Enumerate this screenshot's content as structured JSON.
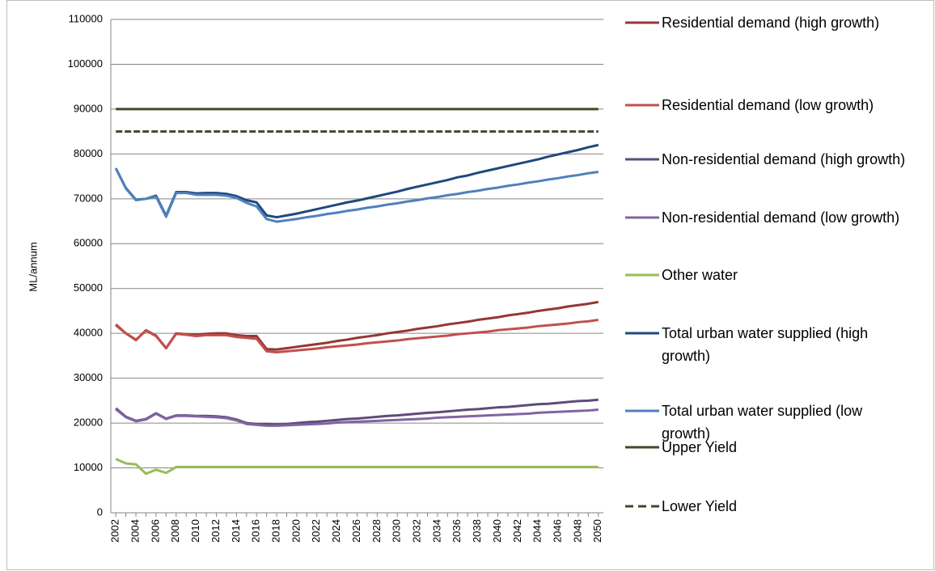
{
  "chart_data": {
    "type": "line",
    "y_label": "ML/annum",
    "categories": [
      2002,
      null,
      2004,
      null,
      2006,
      null,
      2008,
      null,
      2010,
      null,
      2012,
      null,
      2014,
      null,
      2016,
      null,
      2018,
      null,
      2020,
      null,
      2022,
      null,
      2024,
      null,
      2026,
      null,
      2028,
      null,
      2030,
      null,
      2032,
      null,
      2034,
      null,
      2036,
      null,
      2038,
      null,
      2040,
      null,
      2042,
      null,
      2044,
      null,
      2046,
      null,
      2048,
      null,
      2050
    ],
    "ylim": [
      0,
      110000
    ],
    "yticks": [
      0,
      10000,
      20000,
      30000,
      40000,
      50000,
      60000,
      70000,
      80000,
      90000,
      100000,
      110000
    ],
    "grid": true,
    "legend": "right",
    "series": [
      {
        "name": "Residential demand (high growth)",
        "color": "#953735",
        "values": [
          42000,
          40000,
          38500,
          40700,
          39500,
          36700,
          40000,
          39800,
          39700,
          39900,
          40000,
          40000,
          39600,
          39400,
          39400,
          36500,
          36400,
          36700,
          37000,
          37300,
          37600,
          37900,
          38300,
          38600,
          39000,
          39300,
          39600,
          40000,
          40300,
          40600,
          41000,
          41300,
          41600,
          42000,
          42300,
          42600,
          43000,
          43300,
          43600,
          44000,
          44300,
          44600,
          45000,
          45300,
          45600,
          46000,
          46300,
          46600,
          47000
        ]
      },
      {
        "name": "Residential demand (low growth)",
        "color": "#C0504D",
        "values": [
          41800,
          40000,
          38600,
          40600,
          39400,
          36700,
          39900,
          39700,
          39400,
          39600,
          39600,
          39600,
          39200,
          39000,
          38800,
          36000,
          35800,
          36000,
          36200,
          36400,
          36600,
          36900,
          37100,
          37300,
          37500,
          37800,
          38000,
          38200,
          38400,
          38700,
          38900,
          39100,
          39300,
          39500,
          39800,
          40000,
          40200,
          40400,
          40700,
          40900,
          41100,
          41300,
          41600,
          41800,
          42000,
          42200,
          42500,
          42700,
          43000
        ]
      },
      {
        "name": "Non-residential demand (high growth)",
        "color": "#604A7B",
        "values": [
          23300,
          21400,
          20500,
          20900,
          22200,
          21000,
          21700,
          21700,
          21600,
          21600,
          21500,
          21300,
          20800,
          20000,
          19800,
          19800,
          19700,
          19800,
          20000,
          20200,
          20300,
          20500,
          20700,
          20900,
          21000,
          21200,
          21400,
          21600,
          21700,
          21900,
          22100,
          22300,
          22400,
          22600,
          22800,
          23000,
          23100,
          23300,
          23500,
          23600,
          23800,
          24000,
          24200,
          24300,
          24500,
          24700,
          24900,
          25000,
          25200
        ]
      },
      {
        "name": "Non-residential demand (low growth)",
        "color": "#8064A2",
        "values": [
          23100,
          21300,
          20400,
          20800,
          22100,
          20900,
          21600,
          21600,
          21500,
          21400,
          21300,
          21100,
          20600,
          19800,
          19600,
          19400,
          19400,
          19500,
          19600,
          19700,
          19800,
          19900,
          20100,
          20200,
          20300,
          20400,
          20500,
          20600,
          20700,
          20800,
          20900,
          21000,
          21200,
          21300,
          21400,
          21500,
          21600,
          21700,
          21800,
          21900,
          22000,
          22100,
          22300,
          22400,
          22500,
          22600,
          22700,
          22800,
          23000
        ]
      },
      {
        "name": "Other water",
        "color": "#9BBB59",
        "values": [
          12000,
          11000,
          10800,
          8700,
          9600,
          8900,
          10200,
          10200,
          10200,
          10200,
          10200,
          10200,
          10200,
          10200,
          10200,
          10200,
          10200,
          10200,
          10200,
          10200,
          10200,
          10200,
          10200,
          10200,
          10200,
          10200,
          10200,
          10200,
          10200,
          10200,
          10200,
          10200,
          10200,
          10200,
          10200,
          10200,
          10200,
          10200,
          10200,
          10200,
          10200,
          10200,
          10200,
          10200,
          10200,
          10200,
          10200,
          10200,
          10200
        ]
      },
      {
        "name": "Total urban water supplied (high growth)",
        "color": "#1F497D",
        "values": [
          76800,
          72400,
          69800,
          70000,
          70700,
          66200,
          71500,
          71500,
          71200,
          71300,
          71300,
          71100,
          70600,
          69700,
          69200,
          66300,
          65900,
          66300,
          66700,
          67200,
          67700,
          68200,
          68700,
          69200,
          69600,
          70100,
          70600,
          71100,
          71600,
          72200,
          72700,
          73200,
          73700,
          74200,
          74800,
          75200,
          75800,
          76300,
          76800,
          77300,
          77800,
          78300,
          78800,
          79400,
          79900,
          80400,
          80900,
          81500,
          82000
        ]
      },
      {
        "name": "Total urban water supplied (low growth)",
        "color": "#4F81BD",
        "values": [
          76800,
          72300,
          69700,
          70000,
          70500,
          66000,
          71300,
          71300,
          70900,
          70900,
          70900,
          70700,
          70200,
          69100,
          68300,
          65500,
          64900,
          65200,
          65500,
          65900,
          66200,
          66600,
          66900,
          67300,
          67600,
          68000,
          68300,
          68700,
          69000,
          69400,
          69700,
          70100,
          70400,
          70800,
          71100,
          71500,
          71800,
          72200,
          72500,
          72900,
          73200,
          73600,
          73900,
          74300,
          74600,
          75000,
          75300,
          75700,
          76000
        ]
      },
      {
        "name": "Upper Yield",
        "color": "#4A452A",
        "values": [
          90000,
          90000,
          90000,
          90000,
          90000,
          90000,
          90000,
          90000,
          90000,
          90000,
          90000,
          90000,
          90000,
          90000,
          90000,
          90000,
          90000,
          90000,
          90000,
          90000,
          90000,
          90000,
          90000,
          90000,
          90000,
          90000,
          90000,
          90000,
          90000,
          90000,
          90000,
          90000,
          90000,
          90000,
          90000,
          90000,
          90000,
          90000,
          90000,
          90000,
          90000,
          90000,
          90000,
          90000,
          90000,
          90000,
          90000,
          90000,
          90000
        ]
      },
      {
        "name": "Lower Yield",
        "color": "#4A452A",
        "line_style": "dashed",
        "values": [
          85000,
          85000,
          85000,
          85000,
          85000,
          85000,
          85000,
          85000,
          85000,
          85000,
          85000,
          85000,
          85000,
          85000,
          85000,
          85000,
          85000,
          85000,
          85000,
          85000,
          85000,
          85000,
          85000,
          85000,
          85000,
          85000,
          85000,
          85000,
          85000,
          85000,
          85000,
          85000,
          85000,
          85000,
          85000,
          85000,
          85000,
          85000,
          85000,
          85000,
          85000,
          85000,
          85000,
          85000,
          85000,
          85000,
          85000,
          85000,
          85000
        ]
      }
    ]
  }
}
